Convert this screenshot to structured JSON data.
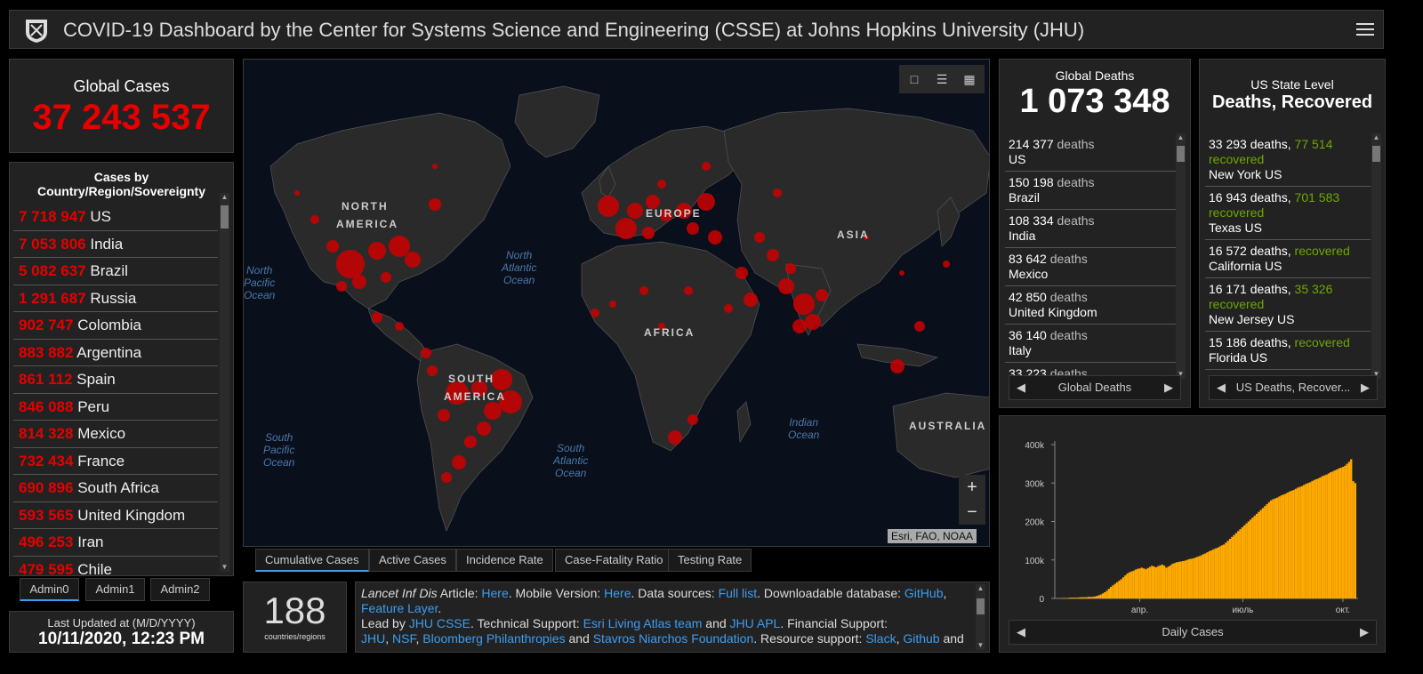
{
  "header": {
    "title": "COVID-19 Dashboard by the Center for Systems Science and Engineering (CSSE) at Johns Hopkins University (JHU)"
  },
  "global_cases": {
    "label": "Global Cases",
    "value": "37 243 537"
  },
  "country_list": {
    "title": "Cases by Country/Region/Sovereignty",
    "items": [
      {
        "value": "7 718 947",
        "name": "US"
      },
      {
        "value": "7 053 806",
        "name": "India"
      },
      {
        "value": "5 082 637",
        "name": "Brazil"
      },
      {
        "value": "1 291 687",
        "name": "Russia"
      },
      {
        "value": "902 747",
        "name": "Colombia"
      },
      {
        "value": "883 882",
        "name": "Argentina"
      },
      {
        "value": "861 112",
        "name": "Spain"
      },
      {
        "value": "846 088",
        "name": "Peru"
      },
      {
        "value": "814 328",
        "name": "Mexico"
      },
      {
        "value": "732 434",
        "name": "France"
      },
      {
        "value": "690 896",
        "name": "South Africa"
      },
      {
        "value": "593 565",
        "name": "United Kingdom"
      },
      {
        "value": "496 253",
        "name": "Iran"
      },
      {
        "value": "479 595",
        "name": "Chile"
      }
    ]
  },
  "admin_tabs": [
    "Admin0",
    "Admin1",
    "Admin2"
  ],
  "last_updated": {
    "label": "Last Updated at (M/D/YYYY)",
    "value": "10/11/2020, 12:23 PM"
  },
  "map": {
    "attribution": "Esri, FAO, NOAA",
    "regions": [
      "NORTH",
      "AMERICA",
      "SOUTH",
      "AMERICA",
      "EUROPE",
      "ASIA",
      "AFRICA",
      "AUSTRALIA"
    ],
    "oceans": {
      "north_pacific": [
        "North",
        "Pacific",
        "Ocean"
      ],
      "north_atlantic": [
        "North",
        "Atlantic",
        "Ocean"
      ],
      "south_pacific": [
        "South",
        "Pacific",
        "Ocean"
      ],
      "south_atlantic": [
        "South",
        "Atlantic",
        "Ocean"
      ],
      "indian": [
        "Indian",
        "Ocean"
      ]
    },
    "zoom_in": "+",
    "zoom_out": "−"
  },
  "map_tabs": [
    "Cumulative Cases",
    "Active Cases",
    "Incidence Rate",
    "Case-Fatality Ratio",
    "Testing Rate"
  ],
  "countries": {
    "value": "188",
    "label": "countries/regions"
  },
  "info": {
    "p1": "Lancet Inf Dis",
    "p2": " Article: ",
    "here1": "Here",
    "p3": ". Mobile Version: ",
    "here2": "Here",
    "p4": ". Data sources: ",
    "full_list": "Full list",
    "p5": ". Downloadable database: ",
    "github": "GitHub",
    "p6": ", ",
    "feature_layer": "Feature Layer",
    "p7": ".",
    "p8": "Lead by ",
    "jhu_csse": "JHU CSSE",
    "p9": ". Technical Support: ",
    "esri": "Esri Living Atlas team",
    "p10": " and ",
    "jhu_apl": "JHU APL",
    "p11": ". Financial Support:",
    "jhu": "JHU",
    "p12": ", ",
    "nsf": "NSF",
    "p13": ", ",
    "bloomberg": "Bloomberg Philanthropies",
    "p14": " and ",
    "stavros": "Stavros Niarchos Foundation",
    "p15": ". Resource support: ",
    "slack": "Slack",
    "p16": ", ",
    "github2": "Github",
    "p17": " and"
  },
  "global_deaths": {
    "label": "Global Deaths",
    "value": "1 073 348",
    "items": [
      {
        "value": "214 377",
        "word": "deaths",
        "place": "US"
      },
      {
        "value": "150 198",
        "word": "deaths",
        "place": "Brazil"
      },
      {
        "value": "108 334",
        "word": "deaths",
        "place": "India"
      },
      {
        "value": "83 642",
        "word": "deaths",
        "place": "Mexico"
      },
      {
        "value": "42 850",
        "word": "deaths",
        "place": "United Kingdom"
      },
      {
        "value": "36 140",
        "word": "deaths",
        "place": "Italy"
      },
      {
        "value": "33 223",
        "word": "deaths",
        "place": ""
      }
    ],
    "pager": "Global Deaths"
  },
  "us_state": {
    "label": "US State Level",
    "value": "Deaths, Recovered",
    "items": [
      {
        "deaths": "33 293 deaths,",
        "recovered": "77 514",
        "rword": "recovered",
        "place": "New York US"
      },
      {
        "deaths": "16 943 deaths,",
        "recovered": "701 583",
        "rword": "recovered",
        "place": "Texas US"
      },
      {
        "deaths": "16 572 deaths,",
        "recovered": "",
        "rword": "recovered",
        "place": "California US"
      },
      {
        "deaths": "16 171 deaths,",
        "recovered": "35 326",
        "rword": "recovered",
        "place": "New Jersey US"
      },
      {
        "deaths": "15 186 deaths,",
        "recovered": "",
        "rword": "recovered",
        "place": "Florida US"
      }
    ],
    "pager": "US Deaths, Recover..."
  },
  "colors": {
    "accent": "#e60000",
    "recovered": "#70a800",
    "link": "#3d9df2",
    "bars": "#ffaa00"
  },
  "chart_data": {
    "type": "bar",
    "title": "Daily Cases",
    "xlabel": "",
    "ylabel": "",
    "ylim": [
      0,
      400000
    ],
    "y_ticks": [
      "0",
      "100k",
      "200k",
      "300k",
      "400k"
    ],
    "x_ticks": [
      "апр.",
      "июль",
      "окт."
    ],
    "series": [
      {
        "name": "",
        "values": [
          0,
          0,
          0,
          1000,
          1000,
          1000,
          2000,
          2000,
          2000,
          2000,
          2000,
          3000,
          3000,
          3000,
          3000,
          4000,
          4000,
          4000,
          5000,
          6000,
          8000,
          10000,
          13000,
          16000,
          20000,
          25000,
          30000,
          34000,
          38000,
          42000,
          46000,
          50000,
          55000,
          60000,
          65000,
          68000,
          70000,
          72000,
          75000,
          77000,
          78000,
          80000,
          78000,
          76000,
          79000,
          82000,
          85000,
          83000,
          81000,
          84000,
          86000,
          88000,
          85000,
          80000,
          83000,
          86000,
          90000,
          92000,
          94000,
          95000,
          96000,
          97000,
          98000,
          100000,
          102000,
          103000,
          104000,
          106000,
          108000,
          110000,
          112000,
          115000,
          117000,
          120000,
          123000,
          125000,
          128000,
          130000,
          132000,
          135000,
          138000,
          140000,
          145000,
          150000,
          155000,
          160000,
          165000,
          170000,
          175000,
          180000,
          185000,
          190000,
          195000,
          200000,
          205000,
          210000,
          215000,
          220000,
          225000,
          230000,
          235000,
          240000,
          245000,
          250000,
          255000,
          258000,
          260000,
          262000,
          265000,
          268000,
          270000,
          272000,
          275000,
          278000,
          280000,
          282000,
          285000,
          288000,
          290000,
          292000,
          295000,
          298000,
          300000,
          302000,
          305000,
          308000,
          310000,
          312000,
          315000,
          318000,
          320000,
          322000,
          325000,
          328000,
          330000,
          333000,
          335000,
          338000,
          340000,
          342000,
          345000,
          350000,
          355000,
          362000,
          305000,
          300000
        ]
      }
    ]
  }
}
